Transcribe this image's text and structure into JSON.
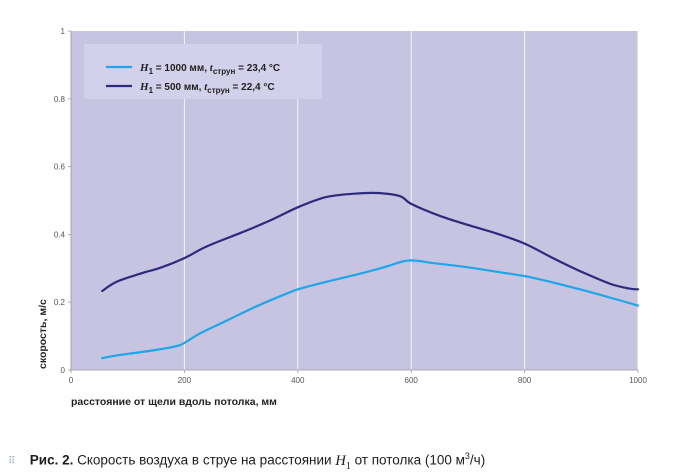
{
  "chart_data": {
    "type": "line",
    "xlabel": "расстояние от щели вдоль потолка, мм",
    "ylabel": "скорость, м/с",
    "xlim": [
      0,
      1000
    ],
    "ylim": [
      0,
      1
    ],
    "x_ticks": [
      "0",
      "200",
      "400",
      "600",
      "800",
      "1000"
    ],
    "y_ticks": [
      "0",
      "0.2",
      "0.4",
      "0.6",
      "0.8",
      "1"
    ],
    "grid": "vertical lines at x ticks",
    "legend_position": "top-left",
    "background_color": "#c7c4e2",
    "series": [
      {
        "name": "H1 = 1000 мм, tструн = 23,4 °C",
        "legend": {
          "var": "H",
          "var_sub": "1",
          "value": " = 1000 мм, ",
          "t": "t",
          "t_sub": "струн",
          "t_value": " = 23,4 °C"
        },
        "color": "#1fa6e8",
        "x": [
          55,
          80,
          120,
          160,
          190,
          205,
          230,
          280,
          330,
          380,
          400,
          450,
          500,
          550,
          595,
          640,
          700,
          750,
          800,
          850,
          900,
          950,
          1000
        ],
        "y": [
          0.035,
          0.043,
          0.052,
          0.062,
          0.072,
          0.085,
          0.11,
          0.15,
          0.19,
          0.225,
          0.238,
          0.26,
          0.28,
          0.302,
          0.323,
          0.315,
          0.303,
          0.29,
          0.277,
          0.258,
          0.237,
          0.214,
          0.19
        ]
      },
      {
        "name": "H1 = 500 мм, tструн = 22,4 °C",
        "legend": {
          "var": "H",
          "var_sub": "1",
          "value": " = 500 мм, ",
          "t": "t",
          "t_sub": "струн",
          "t_value": " = 22,4 °C"
        },
        "color": "#2e2a7e",
        "x": [
          55,
          80,
          120,
          160,
          200,
          240,
          300,
          350,
          400,
          450,
          500,
          540,
          580,
          600,
          650,
          700,
          750,
          800,
          850,
          900,
          950,
          985,
          1000
        ],
        "y": [
          0.233,
          0.26,
          0.283,
          0.303,
          0.33,
          0.365,
          0.405,
          0.44,
          0.48,
          0.51,
          0.52,
          0.522,
          0.513,
          0.49,
          0.455,
          0.428,
          0.403,
          0.373,
          0.33,
          0.29,
          0.255,
          0.24,
          0.238
        ]
      }
    ]
  },
  "caption": {
    "label": "Рис. 2.",
    "text_before": " Скорость воздуха в струе на расстоянии ",
    "var": "H",
    "var_sub": "1",
    "text_after": " от потолка (100 м",
    "sup": "3",
    "unit_end": "/ч)"
  }
}
